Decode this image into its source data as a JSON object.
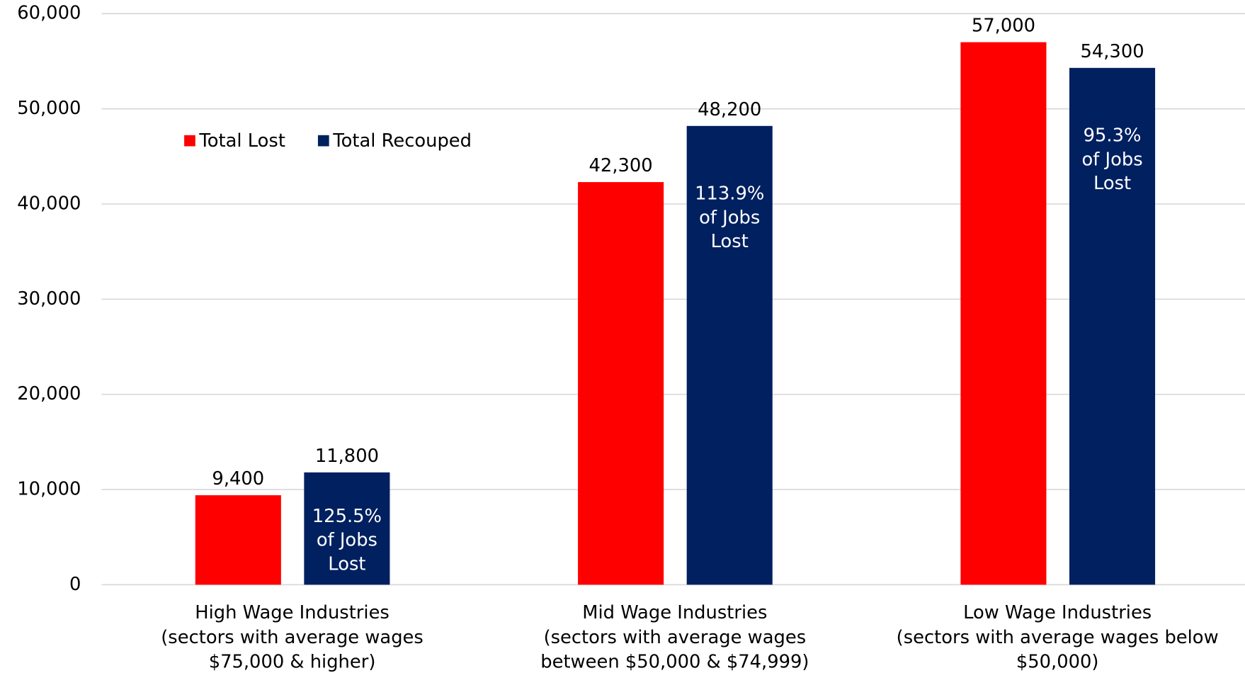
{
  "chart_data": {
    "type": "bar",
    "categories": [
      [
        "High Wage Industries",
        "(sectors with average wages",
        "$75,000 & higher)"
      ],
      [
        "Mid Wage Industries",
        "(sectors with average wages",
        "between $50,000 & $74,999)"
      ],
      [
        "Low Wage Industries",
        "(sectors with average wages below",
        "$50,000)"
      ]
    ],
    "series": [
      {
        "name": "Total Lost",
        "color": "#ff0000",
        "values": [
          9400,
          42300,
          57000
        ],
        "value_labels": [
          "9,400",
          "42,300",
          "57,000"
        ]
      },
      {
        "name": "Total Recouped",
        "color": "#002060",
        "values": [
          11800,
          48200,
          54300
        ],
        "value_labels": [
          "11,800",
          "48,200",
          "54,300"
        ],
        "annotations": [
          [
            "125.5%",
            "of Jobs",
            "Lost"
          ],
          [
            "113.9%",
            "of Jobs",
            "Lost"
          ],
          [
            "95.3%",
            "of Jobs",
            "Lost"
          ]
        ]
      }
    ],
    "ylim": [
      0,
      60000
    ],
    "yticks": [
      0,
      {
        "value": 10000,
        "label": "10,000"
      },
      {
        "value": 20000,
        "label": "20,000"
      },
      {
        "value": 30000,
        "label": "30,000"
      },
      {
        "value": 40000,
        "label": "40,000"
      },
      {
        "value": 50000,
        "label": "50,000"
      },
      {
        "value": 60000,
        "label": "60,000"
      }
    ],
    "grid": true,
    "legend": "top-left"
  }
}
